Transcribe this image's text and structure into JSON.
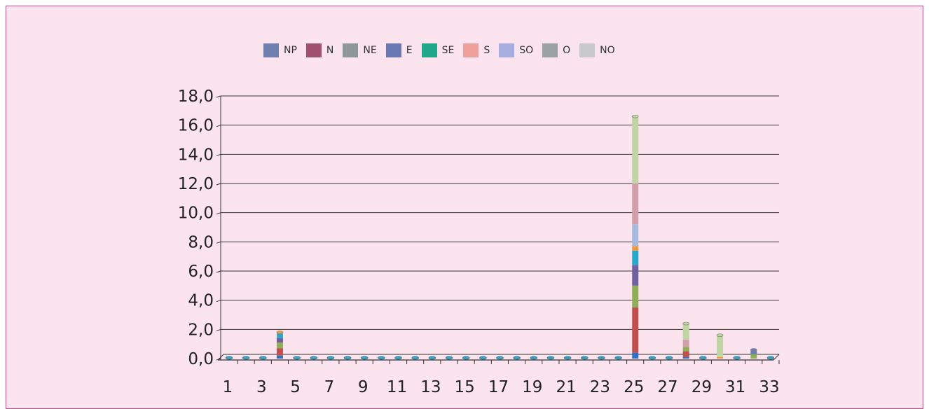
{
  "chart_data": {
    "type": "bar",
    "stacked": true,
    "legend_position": "top",
    "grid": true,
    "ylim": [
      0,
      18
    ],
    "yticks": [
      "0,0",
      "2,0",
      "4,0",
      "6,0",
      "8,0",
      "10,0",
      "12,0",
      "14,0",
      "16,0",
      "18,0"
    ],
    "x": [
      1,
      2,
      3,
      4,
      5,
      6,
      7,
      8,
      9,
      10,
      11,
      12,
      13,
      14,
      15,
      16,
      17,
      18,
      19,
      20,
      21,
      22,
      23,
      24,
      25,
      26,
      27,
      28,
      29,
      30,
      31,
      32,
      33
    ],
    "xtick_labels": [
      "1",
      "3",
      "5",
      "7",
      "9",
      "11",
      "13",
      "15",
      "17",
      "19",
      "21",
      "23",
      "25",
      "27",
      "29",
      "31",
      "33"
    ],
    "legend": [
      {
        "name": "NP",
        "color": "#6f7fb0"
      },
      {
        "name": "N",
        "color": "#a1506f"
      },
      {
        "name": "NE",
        "color": "#8e979a"
      },
      {
        "name": "E",
        "color": "#6a78b4"
      },
      {
        "name": "SE",
        "color": "#1fa58a"
      },
      {
        "name": "S",
        "color": "#f0a09a"
      },
      {
        "name": "SO",
        "color": "#a6aedf"
      },
      {
        "name": "O",
        "color": "#9aa0a4"
      },
      {
        "name": "NO",
        "color": "#c7c9cb"
      }
    ],
    "stacks": [
      {
        "x": 4,
        "segments": [
          {
            "value": 0.2,
            "color": "#2f73c0"
          },
          {
            "value": 0.5,
            "color": "#c0504d"
          },
          {
            "value": 0.4,
            "color": "#8fae5a"
          },
          {
            "value": 0.3,
            "color": "#7060a0"
          },
          {
            "value": 0.3,
            "color": "#2aa8c8"
          },
          {
            "value": 0.1,
            "color": "#f39a3a"
          }
        ]
      },
      {
        "x": 25,
        "segments": [
          {
            "value": 0.4,
            "color": "#2f73c0"
          },
          {
            "value": 3.1,
            "color": "#c0504d"
          },
          {
            "value": 1.5,
            "color": "#8fae5a"
          },
          {
            "value": 1.4,
            "color": "#7060a0"
          },
          {
            "value": 1.0,
            "color": "#2aa8c8"
          },
          {
            "value": 0.3,
            "color": "#f39a3a"
          },
          {
            "value": 1.5,
            "color": "#a6b9df"
          },
          {
            "value": 2.8,
            "color": "#d2a0aa"
          },
          {
            "value": 4.6,
            "color": "#c0d4a4"
          }
        ]
      },
      {
        "x": 28,
        "segments": [
          {
            "value": 0.1,
            "color": "#2f73c0"
          },
          {
            "value": 0.4,
            "color": "#c0504d"
          },
          {
            "value": 0.3,
            "color": "#8fae5a"
          },
          {
            "value": 0.5,
            "color": "#d2a0aa"
          },
          {
            "value": 1.1,
            "color": "#c0d4a4"
          }
        ]
      },
      {
        "x": 30,
        "segments": [
          {
            "value": 0.1,
            "color": "#f39a3a"
          },
          {
            "value": 1.5,
            "color": "#c0d4a4"
          }
        ]
      },
      {
        "x": 32,
        "segments": [
          {
            "value": 0.3,
            "color": "#8fae5a"
          },
          {
            "value": 0.3,
            "color": "#6f7fb0"
          }
        ]
      }
    ]
  }
}
